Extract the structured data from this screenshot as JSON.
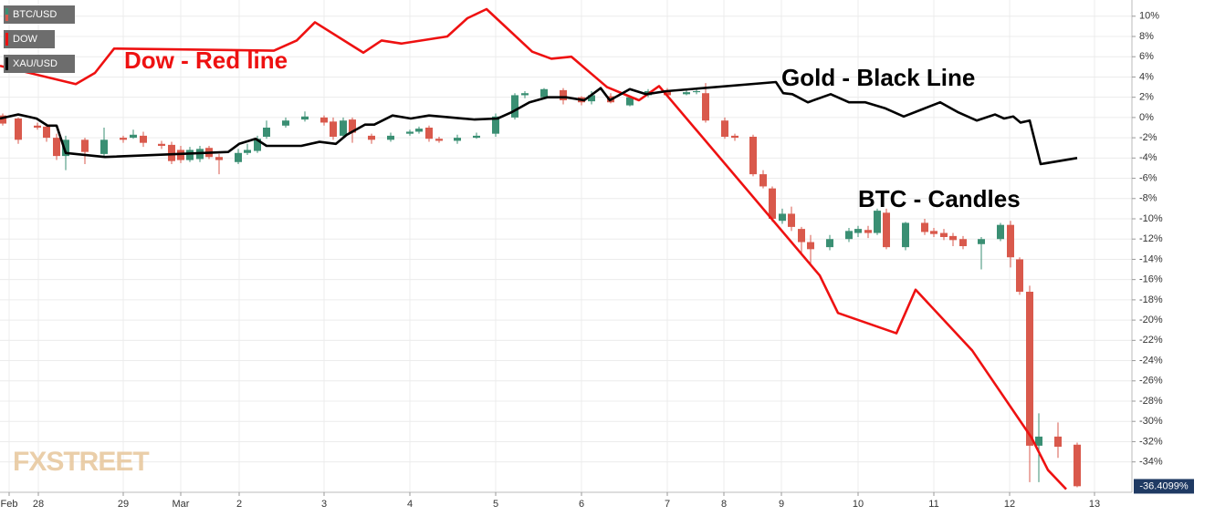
{
  "chart_data": {
    "type": "candlestick",
    "watermark": "FXSTREET",
    "annotations": [
      "Dow - Red line",
      "Gold - Black Line",
      "BTC - Candles"
    ],
    "last_value_label": {
      "value": -36.4099,
      "label": "-36.4099%"
    },
    "grid": true,
    "xlim": [
      0,
      124
    ],
    "ylim": [
      -37,
      11.6
    ],
    "xticks": [
      {
        "value": 1,
        "label": "Feb"
      },
      {
        "value": 4.2,
        "label": "28"
      },
      {
        "value": 13.5,
        "label": "29"
      },
      {
        "value": 19.8,
        "label": "Mar"
      },
      {
        "value": 26.2,
        "label": "2"
      },
      {
        "value": 35.5,
        "label": "3"
      },
      {
        "value": 44.9,
        "label": "4"
      },
      {
        "value": 54.3,
        "label": "5"
      },
      {
        "value": 63.7,
        "label": "6"
      },
      {
        "value": 73.1,
        "label": "7"
      },
      {
        "value": 79.3,
        "label": "8"
      },
      {
        "value": 85.6,
        "label": "9"
      },
      {
        "value": 94,
        "label": "10"
      },
      {
        "value": 102.3,
        "label": "11"
      },
      {
        "value": 110.6,
        "label": "12"
      },
      {
        "value": 119.9,
        "label": "13"
      }
    ],
    "yticks": [
      {
        "value": 10,
        "label": "10%"
      },
      {
        "value": 8,
        "label": "8%"
      },
      {
        "value": 6,
        "label": "6%"
      },
      {
        "value": 4,
        "label": "4%"
      },
      {
        "value": 2,
        "label": "2%"
      },
      {
        "value": 0,
        "label": "0%"
      },
      {
        "value": -2,
        "label": "-2%"
      },
      {
        "value": -4,
        "label": "-4%"
      },
      {
        "value": -6,
        "label": "-6%"
      },
      {
        "value": -8,
        "label": "-8%"
      },
      {
        "value": -10,
        "label": "-10%"
      },
      {
        "value": -12,
        "label": "-12%"
      },
      {
        "value": -14,
        "label": "-14%"
      },
      {
        "value": -16,
        "label": "-16%"
      },
      {
        "value": -18,
        "label": "-18%"
      },
      {
        "value": -20,
        "label": "-20%"
      },
      {
        "value": -22,
        "label": "-22%"
      },
      {
        "value": -24,
        "label": "-24%"
      },
      {
        "value": -26,
        "label": "-26%"
      },
      {
        "value": -28,
        "label": "-28%"
      },
      {
        "value": -30,
        "label": "-30%"
      },
      {
        "value": -32,
        "label": "-32%"
      },
      {
        "value": -34,
        "label": "-34%"
      }
    ],
    "candles": {
      "name": "BTC/USD",
      "up_color": "#3a8f73",
      "down_color": "#d9594c",
      "x": [
        0.3,
        2.0,
        4.1,
        5.1,
        6.2,
        7.2,
        9.3,
        11.4,
        13.5,
        14.6,
        15.7,
        17.7,
        18.8,
        19.8,
        20.8,
        21.9,
        22.9,
        24.0,
        26.1,
        27.1,
        28.2,
        29.2,
        31.3,
        33.4,
        35.5,
        36.5,
        37.6,
        38.6,
        40.7,
        42.8,
        44.9,
        45.9,
        47.0,
        48.1,
        50.1,
        52.2,
        54.3,
        56.4,
        57.5,
        59.6,
        61.7,
        63.7,
        64.8,
        66.9,
        69.0,
        71.0,
        73.1,
        75.2,
        76.3,
        77.3,
        79.4,
        80.5,
        82.5,
        83.6,
        84.6,
        85.7,
        86.7,
        87.8,
        88.8,
        90.9,
        93.0,
        94.0,
        95.1,
        96.1,
        97.1,
        99.2,
        101.3,
        102.3,
        103.4,
        104.4,
        105.5,
        107.5,
        109.6,
        110.7,
        111.7,
        112.8,
        113.8,
        115.9,
        118.0
      ],
      "open": [
        0.2,
        -0.1,
        -0.8,
        -0.9,
        -2.0,
        -3.8,
        -2.2,
        -3.6,
        -2.0,
        -2.0,
        -1.8,
        -2.6,
        -2.7,
        -3.2,
        -4.2,
        -4.1,
        -3.0,
        -3.9,
        -4.4,
        -3.5,
        -3.3,
        -1.9,
        -0.8,
        -0.2,
        0,
        -0.4,
        -1.8,
        -0.2,
        -1.8,
        -2.2,
        -1.6,
        -1.4,
        -1.0,
        -2.1,
        -2.3,
        -2.0,
        -1.6,
        0,
        2.2,
        2.0,
        2.7,
        2.0,
        1.6,
        2.1,
        1.2,
        2.2,
        2.7,
        2.3,
        2.5,
        2.4,
        -0.3,
        -1.8,
        -1.9,
        -5.6,
        -7.0,
        -10.2,
        -9.5,
        -11.0,
        -12.3,
        -12.8,
        -12.0,
        -11.4,
        -11.1,
        -11.4,
        -9.4,
        -12.8,
        -10.4,
        -11.2,
        -11.4,
        -11.7,
        -12.0,
        -12.5,
        -12.0,
        -10.6,
        -14.0,
        -17.2,
        -32.4,
        -31.5,
        -32.3
      ],
      "high": [
        0.4,
        0,
        -0.5,
        -0.6,
        -1.6,
        -1.8,
        -2.0,
        -1.0,
        -1.8,
        -1.2,
        -1.4,
        -2.3,
        -2.4,
        -2.8,
        -2.9,
        -2.8,
        -2.8,
        -3.6,
        -3.1,
        -2.6,
        -1.8,
        -0.3,
        0,
        0.6,
        0.2,
        0,
        0,
        0,
        -1.6,
        -1.5,
        -1.2,
        -0.9,
        -0.8,
        -1.9,
        -1.7,
        -1.5,
        0.4,
        2.4,
        2.6,
        2.9,
        2.9,
        2.1,
        2.6,
        2.4,
        2.2,
        2.8,
        2.9,
        2.7,
        2.8,
        3.4,
        0,
        -1.6,
        -1.7,
        -5.2,
        -6.8,
        -9.0,
        -8.8,
        -10.8,
        -11.6,
        -11.6,
        -10.9,
        -10.7,
        -10.7,
        -9.0,
        -9.0,
        -10.3,
        -10.0,
        -10.9,
        -11.0,
        -11.4,
        -11.7,
        -11.8,
        -10.4,
        -10.2,
        -13.8,
        -16.6,
        -29.2,
        -30.1,
        -32.1
      ],
      "low": [
        -0.8,
        -2.6,
        -1.2,
        -2.4,
        -4.2,
        -5.2,
        -4.6,
        -3.8,
        -2.5,
        -2.1,
        -2.9,
        -3.1,
        -4.6,
        -4.5,
        -4.4,
        -4.4,
        -4.1,
        -5.6,
        -4.6,
        -3.7,
        -3.5,
        -2.1,
        -1.0,
        -0.4,
        -0.8,
        -2.2,
        -2.1,
        -2.5,
        -2.6,
        -2.4,
        -1.8,
        -1.6,
        -2.4,
        -2.5,
        -2.6,
        -2.1,
        -1.9,
        -0.2,
        1.9,
        1.9,
        1.3,
        1.2,
        1.3,
        1.4,
        1.1,
        2.0,
        2.0,
        2.2,
        2.3,
        -0.5,
        -2.1,
        -2.3,
        -5.8,
        -7.0,
        -10.3,
        -10.5,
        -11.2,
        -13.6,
        -14.5,
        -13.1,
        -12.3,
        -11.8,
        -11.9,
        -11.6,
        -13.0,
        -13.1,
        -11.6,
        -11.8,
        -12.1,
        -12.7,
        -13.0,
        -15.0,
        -12.2,
        -14.8,
        -17.5,
        -36.0,
        -36.0,
        -33.6,
        -36.5
      ],
      "close": [
        -0.6,
        -2.2,
        -1.0,
        -2.0,
        -3.8,
        -2.2,
        -3.4,
        -2.2,
        -2.2,
        -1.7,
        -2.5,
        -2.8,
        -4.3,
        -4.2,
        -3.2,
        -3.1,
        -3.9,
        -4.2,
        -3.5,
        -3.2,
        -2.1,
        -1.0,
        -0.3,
        0.1,
        -0.5,
        -1.9,
        -0.3,
        -1.5,
        -2.2,
        -1.8,
        -1.4,
        -1.1,
        -2.1,
        -2.3,
        -2.0,
        -1.8,
        0.1,
        2.2,
        2.4,
        2.8,
        1.7,
        1.5,
        2.2,
        1.5,
        2.0,
        2.6,
        2.2,
        2.5,
        2.6,
        -0.3,
        -1.9,
        -2.0,
        -5.6,
        -6.8,
        -10.0,
        -9.5,
        -10.8,
        -12.3,
        -13.0,
        -12.0,
        -11.2,
        -11.0,
        -11.4,
        -9.2,
        -12.8,
        -10.4,
        -11.3,
        -11.5,
        -11.8,
        -12.1,
        -12.7,
        -12.0,
        -10.6,
        -13.8,
        -17.2,
        -32.4,
        -31.5,
        -32.5,
        -36.4
      ]
    },
    "series": [
      {
        "name": "DOW",
        "color": "#ee1111",
        "x": [
          0,
          8.3,
          10.4,
          12.5,
          30.0,
          32.5,
          34.5,
          39.8,
          41.8,
          44.0,
          49.0,
          51.2,
          53.3,
          58.3,
          60.4,
          62.6,
          66.5,
          70.0,
          72.2,
          89.8,
          91.8,
          98.2,
          100.3,
          106.5,
          113.0,
          114.8,
          116.8
        ],
        "values": [
          5.1,
          3.3,
          4.4,
          6.8,
          6.6,
          7.6,
          9.4,
          6.4,
          7.6,
          7.3,
          8.0,
          9.8,
          10.7,
          6.5,
          5.8,
          6.0,
          3.0,
          1.7,
          3.1,
          -15.6,
          -19.3,
          -21.3,
          -17.0,
          -23.0,
          -31.6,
          -34.8,
          -36.7
        ]
      },
      {
        "name": "XAU/USD",
        "color": "#000000",
        "x": [
          0,
          2.0,
          4.0,
          5.2,
          6.2,
          7.2,
          11.5,
          25.0,
          26.2,
          28.0,
          29.2,
          33.0,
          35.0,
          36.8,
          38.0,
          40.0,
          41.0,
          43.0,
          45.0,
          47.0,
          52.0,
          54.5,
          56.0,
          58.0,
          60.0,
          62.0,
          64.0,
          65.8,
          66.8,
          69.0,
          70.8,
          73.0,
          85.0,
          85.8,
          86.8,
          88.5,
          91.0,
          93.0,
          94.8,
          97.0,
          99.0,
          101.0,
          103.0,
          105.0,
          107.0,
          109.0,
          110.0,
          111.0,
          111.8,
          112.8,
          114.0,
          118.0
        ],
        "values": [
          -0.1,
          0.3,
          -0.1,
          -0.8,
          -0.8,
          -3.5,
          -3.9,
          -3.4,
          -2.6,
          -2.1,
          -2.8,
          -2.8,
          -2.4,
          -2.6,
          -1.7,
          -0.7,
          -0.7,
          0.2,
          -0.1,
          0.2,
          -0.2,
          -0.1,
          0.5,
          1.5,
          2.0,
          2.0,
          1.7,
          2.9,
          1.7,
          2.8,
          2.3,
          2.6,
          3.5,
          2.4,
          2.3,
          1.5,
          2.3,
          1.5,
          1.5,
          0.9,
          0.1,
          0.8,
          1.5,
          0.5,
          -0.3,
          0.3,
          -0.1,
          0.1,
          -0.5,
          -0.3,
          -4.6,
          -4.0
        ]
      }
    ]
  }
}
